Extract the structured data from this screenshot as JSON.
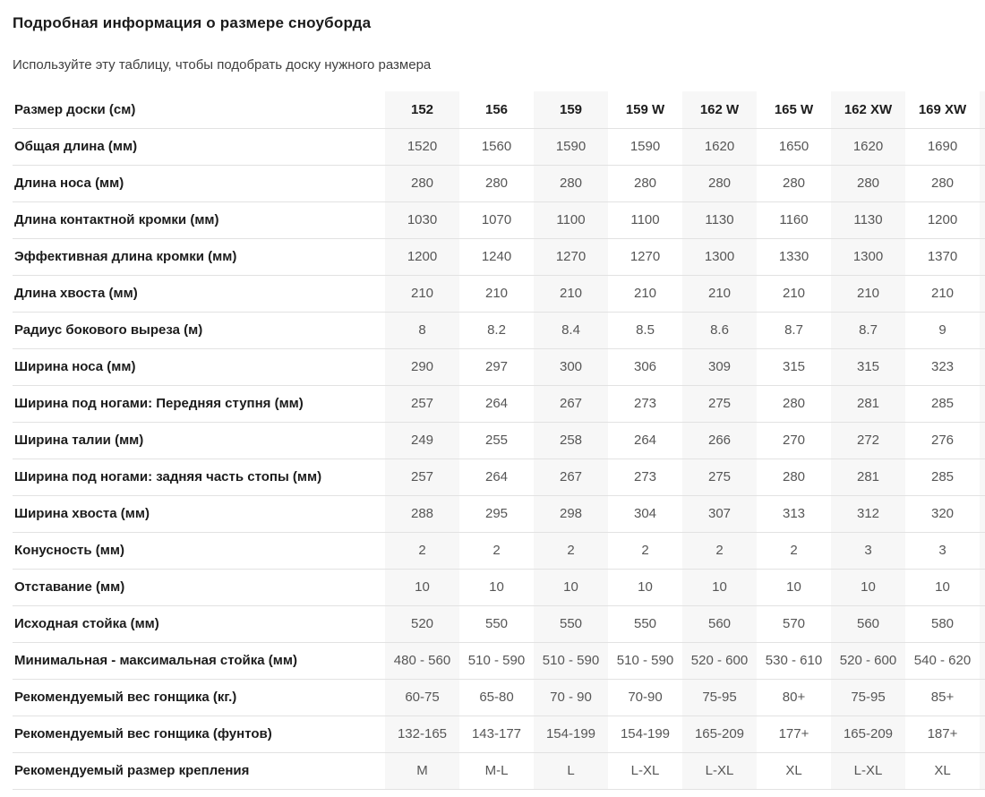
{
  "page": {
    "title": "Подробная информация о размере сноуборда",
    "subtitle": "Используйте эту таблицу, чтобы подобрать доску нужного размера"
  },
  "table": {
    "header_label": "Размер доски (см)",
    "columns": [
      "152",
      "156",
      "159",
      "159 W",
      "162 W",
      "165 W",
      "162 XW",
      "169 XW"
    ],
    "rows": [
      {
        "label": "Общая длина (мм)",
        "values": [
          "1520",
          "1560",
          "1590",
          "1590",
          "1620",
          "1650",
          "1620",
          "1690"
        ]
      },
      {
        "label": "Длина носа (мм)",
        "values": [
          "280",
          "280",
          "280",
          "280",
          "280",
          "280",
          "280",
          "280"
        ]
      },
      {
        "label": "Длина контактной кромки (мм)",
        "values": [
          "1030",
          "1070",
          "1100",
          "1100",
          "1130",
          "1160",
          "1130",
          "1200"
        ]
      },
      {
        "label": "Эффективная длина кромки (мм)",
        "values": [
          "1200",
          "1240",
          "1270",
          "1270",
          "1300",
          "1330",
          "1300",
          "1370"
        ]
      },
      {
        "label": "Длина хвоста (мм)",
        "values": [
          "210",
          "210",
          "210",
          "210",
          "210",
          "210",
          "210",
          "210"
        ]
      },
      {
        "label": "Радиус бокового выреза (м)",
        "values": [
          "8",
          "8.2",
          "8.4",
          "8.5",
          "8.6",
          "8.7",
          "8.7",
          "9"
        ]
      },
      {
        "label": "Ширина носа (мм)",
        "values": [
          "290",
          "297",
          "300",
          "306",
          "309",
          "315",
          "315",
          "323"
        ]
      },
      {
        "label": "Ширина под ногами: Передняя ступня (мм)",
        "values": [
          "257",
          "264",
          "267",
          "273",
          "275",
          "280",
          "281",
          "285"
        ]
      },
      {
        "label": "Ширина талии (мм)",
        "values": [
          "249",
          "255",
          "258",
          "264",
          "266",
          "270",
          "272",
          "276"
        ]
      },
      {
        "label": "Ширина под ногами: задняя часть стопы (мм)",
        "values": [
          "257",
          "264",
          "267",
          "273",
          "275",
          "280",
          "281",
          "285"
        ]
      },
      {
        "label": "Ширина хвоста (мм)",
        "values": [
          "288",
          "295",
          "298",
          "304",
          "307",
          "313",
          "312",
          "320"
        ]
      },
      {
        "label": "Конусность (мм)",
        "values": [
          "2",
          "2",
          "2",
          "2",
          "2",
          "2",
          "3",
          "3"
        ]
      },
      {
        "label": "Отставание (мм)",
        "values": [
          "10",
          "10",
          "10",
          "10",
          "10",
          "10",
          "10",
          "10"
        ]
      },
      {
        "label": "Исходная стойка (мм)",
        "values": [
          "520",
          "550",
          "550",
          "550",
          "560",
          "570",
          "560",
          "580"
        ]
      },
      {
        "label": "Минимальная - максимальная стойка (мм)",
        "values": [
          "480 - 560",
          "510 - 590",
          "510 - 590",
          "510 - 590",
          "520 - 600",
          "530 - 610",
          "520 - 600",
          "540 - 620"
        ]
      },
      {
        "label": "Рекомендуемый вес гонщика (кг.)",
        "values": [
          "60-75",
          "65-80",
          "70 - 90",
          "70-90",
          "75-95",
          "80+",
          "75-95",
          "85+"
        ]
      },
      {
        "label": "Рекомендуемый вес гонщика (фунтов)",
        "values": [
          "132-165",
          "143-177",
          "154-199",
          "154-199",
          "165-209",
          "177+",
          "165-209",
          "187+"
        ]
      },
      {
        "label": "Рекомендуемый размер крепления",
        "values": [
          "M",
          "M-L",
          "L",
          "L-XL",
          "L-XL",
          "XL",
          "L-XL",
          "XL"
        ]
      }
    ]
  },
  "colors": {
    "shaded_column_bg": "#f7f7f7",
    "row_border": "#e2e2e2",
    "label_text": "#1c1c1c",
    "value_text": "#565656"
  }
}
